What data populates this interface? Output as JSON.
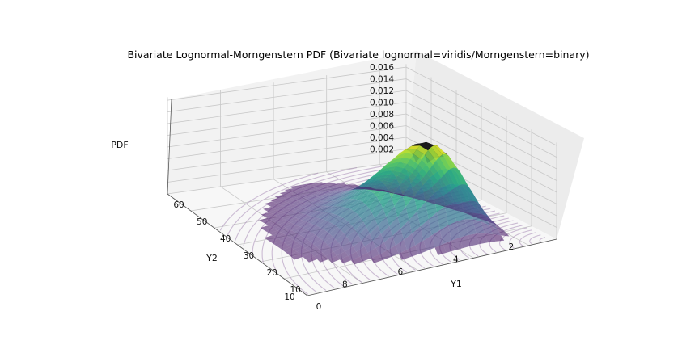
{
  "chart_data": {
    "type": "surface3d",
    "title": "Bivariate Lognormal-Morngenstern PDF (Bivariate lognormal=viridis/Morngenstern=binary)",
    "xlabel": "Y1",
    "ylabel": "Y2",
    "zlabel": "PDF",
    "x_ticks": [
      "0",
      "10",
      "20",
      "30",
      "40",
      "50",
      "60"
    ],
    "y_ticks": [
      "2",
      "4",
      "6",
      "8",
      "10"
    ],
    "z_ticks": [
      "0.002",
      "0.004",
      "0.006",
      "0.008",
      "0.010",
      "0.012",
      "0.014",
      "0.016"
    ],
    "xlim": [
      0,
      60
    ],
    "ylim": [
      1,
      10
    ],
    "zlim": [
      0,
      0.0165
    ],
    "peak": {
      "y1": 12,
      "y2": 4,
      "pdf": 0.0162
    },
    "series": [
      {
        "name": "Bivariate lognormal",
        "colormap": "viridis",
        "role": "surface"
      },
      {
        "name": "Morngenstern",
        "colormap": "binary",
        "role": "surface"
      }
    ],
    "contour_color": "#a07fb0",
    "grid": true
  }
}
